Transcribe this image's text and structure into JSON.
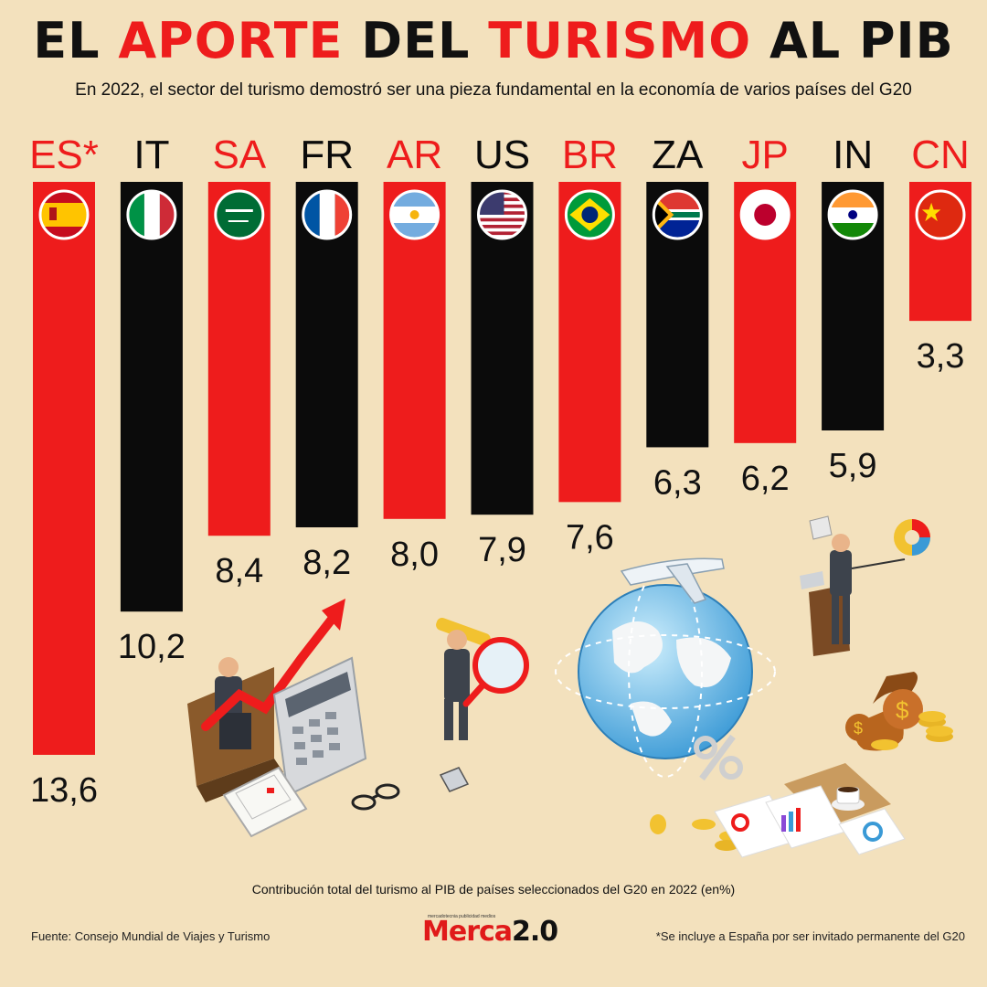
{
  "title": {
    "w1": "EL",
    "w2": "APORTE",
    "w3": "DEL",
    "w4": "TURISMO",
    "w5": "AL PIB"
  },
  "subtitle": "En 2022, el sector del turismo demostró ser una pieza fundamental en la economía de varios países del G20",
  "colors": {
    "red": "#ee1c1c",
    "black": "#0b0b0b",
    "background": "#f3e1bd"
  },
  "chart_data": {
    "type": "bar",
    "categories": [
      "ES*",
      "IT",
      "SA",
      "FR",
      "AR",
      "US",
      "BR",
      "ZA",
      "JP",
      "IN",
      "CN"
    ],
    "values": [
      13.6,
      10.2,
      8.4,
      8.2,
      8.0,
      7.9,
      7.6,
      6.3,
      6.2,
      5.9,
      3.3
    ],
    "labels": [
      "13,6",
      "10,2",
      "8,4",
      "8,2",
      "8,0",
      "7,9",
      "7,6",
      "6,3",
      "6,2",
      "5,9",
      "3,3"
    ],
    "bar_colors": [
      "red",
      "black",
      "red",
      "black",
      "red",
      "black",
      "red",
      "black",
      "red",
      "black",
      "red"
    ],
    "flag_icons": [
      "spain-flag-icon",
      "italy-flag-icon",
      "saudi-arabia-flag-icon",
      "france-flag-icon",
      "argentina-flag-icon",
      "usa-flag-icon",
      "brazil-flag-icon",
      "south-africa-flag-icon",
      "japan-flag-icon",
      "india-flag-icon",
      "china-flag-icon"
    ],
    "caption": "Contribución total del turismo al PIB de países seleccionados del G20 en 2022 (en%)"
  },
  "footer": {
    "source": "Fuente: Consejo Mundial de Viajes y Turismo",
    "note": "*Se incluye a España por ser invitado permanente del G20",
    "logo_a": "Merca",
    "logo_b": "2.0",
    "logo_tag": "mercadotecnia publicidad medios"
  },
  "illustrations": [
    "businessman-laptop-icon",
    "growth-arrow-icon",
    "calculator-icon",
    "calendar-icon",
    "glasses-icon",
    "telescope-man-icon",
    "magnifier-icon",
    "phone-icon",
    "globe-icon",
    "airplane-icon",
    "percent-icon",
    "presenter-podium-icon",
    "pie-chart-icon",
    "money-bags-icon",
    "coins-icon",
    "documents-icon",
    "coffee-cup-icon"
  ]
}
